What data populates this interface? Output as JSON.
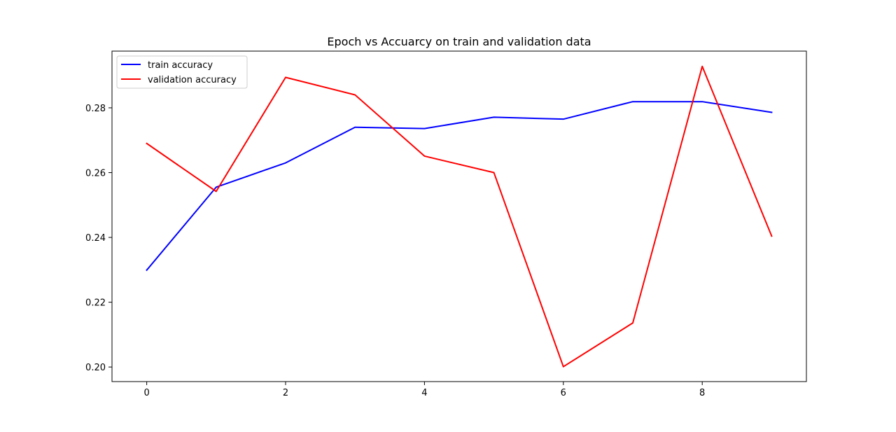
{
  "chart_data": {
    "type": "line",
    "title": "Epoch vs Accuarcy on train and validation data",
    "xlabel": "",
    "ylabel": "",
    "xlim": [
      -0.5,
      9.5
    ],
    "ylim": [
      0.1955,
      0.2975
    ],
    "xticks": [
      0,
      2,
      4,
      6,
      8
    ],
    "xtick_labels": [
      "0",
      "2",
      "4",
      "6",
      "8"
    ],
    "yticks": [
      0.2,
      0.22,
      0.24,
      0.26,
      0.28
    ],
    "ytick_labels": [
      "0.20",
      "0.22",
      "0.24",
      "0.26",
      "0.28"
    ],
    "grid": false,
    "legend_position": "top-left",
    "x": [
      0,
      1,
      2,
      3,
      4,
      5,
      6,
      7,
      8,
      9
    ],
    "series": [
      {
        "name": "train accuracy",
        "color": "#0000ff",
        "values": [
          0.2299,
          0.2555,
          0.263,
          0.274,
          0.2736,
          0.2771,
          0.2765,
          0.2819,
          0.2819,
          0.2786
        ]
      },
      {
        "name": "validation accuracy",
        "color": "#ff0000",
        "values": [
          0.269,
          0.2542,
          0.2894,
          0.284,
          0.2651,
          0.26,
          0.2001,
          0.2136,
          0.2928,
          0.2404
        ]
      }
    ]
  }
}
